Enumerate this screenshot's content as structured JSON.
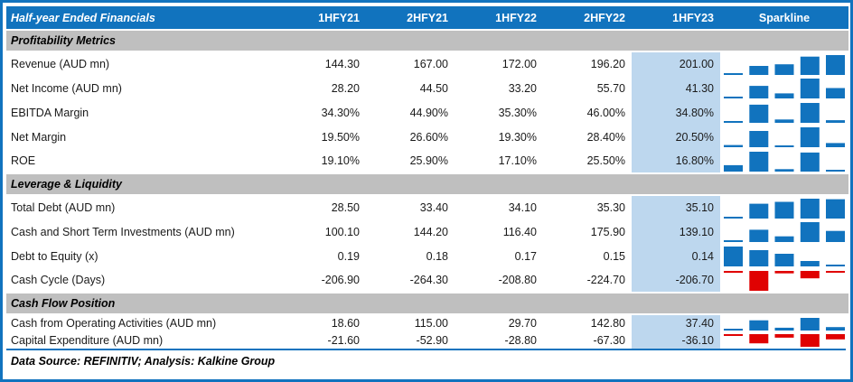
{
  "colors": {
    "accent_blue": "#1173BE",
    "section_gray": "#BFBFBF",
    "highlight_column": "#BDD7EE",
    "sparkline_positive": "#1173BE",
    "sparkline_negative": "#E00202"
  },
  "table": {
    "header": {
      "title": "Half-year Ended Financials",
      "columns": [
        "1HFY21",
        "2HFY21",
        "1HFY22",
        "2HFY22",
        "1HFY23"
      ],
      "sparkline_label": "Sparkline",
      "highlighted_column": "1HFY23"
    },
    "sections": [
      {
        "label": "Profitability Metrics",
        "rows": [
          {
            "label": "Revenue (AUD mn)",
            "values": [
              "144.30",
              "167.00",
              "172.00",
              "196.20",
              "201.00"
            ]
          },
          {
            "label": "Net Income (AUD mn)",
            "values": [
              "28.20",
              "44.50",
              "33.20",
              "55.70",
              "41.30"
            ]
          },
          {
            "label": "EBITDA Margin",
            "values": [
              "34.30%",
              "44.90%",
              "35.30%",
              "46.00%",
              "34.80%"
            ]
          },
          {
            "label": "Net Margin",
            "values": [
              "19.50%",
              "26.60%",
              "19.30%",
              "28.40%",
              "20.50%"
            ]
          },
          {
            "label": "ROE",
            "values": [
              "19.10%",
              "25.90%",
              "17.10%",
              "25.50%",
              "16.80%"
            ]
          }
        ]
      },
      {
        "label": "Leverage & Liquidity",
        "rows": [
          {
            "label": "Total Debt (AUD mn)",
            "values": [
              "28.50",
              "33.40",
              "34.10",
              "35.30",
              "35.10"
            ]
          },
          {
            "label": "Cash and Short Term Investments (AUD mn)",
            "values": [
              "100.10",
              "144.20",
              "116.40",
              "175.90",
              "139.10"
            ]
          },
          {
            "label": "Debt to Equity (x)",
            "values": [
              "0.19",
              "0.18",
              "0.17",
              "0.15",
              "0.14"
            ]
          },
          {
            "label": "Cash Cycle (Days)",
            "values": [
              "-206.90",
              "-264.30",
              "-208.80",
              "-224.70",
              "-206.70"
            ]
          }
        ]
      },
      {
        "label": "Cash Flow Position",
        "rows": [
          {
            "label": "Cash from Operating Activities (AUD mn)",
            "values": [
              "18.60",
              "115.00",
              "29.70",
              "142.80",
              "37.40"
            ]
          },
          {
            "label": "Capital Expenditure (AUD mn)",
            "values": [
              "-21.60",
              "-52.90",
              "-28.80",
              "-67.30",
              "-36.10"
            ]
          }
        ]
      }
    ]
  },
  "footer": {
    "note": "Data Source: REFINITIV; Analysis: Kalkine Group"
  },
  "chart_data": {
    "type": "table",
    "title": "Half-year Ended Financials",
    "columns": [
      "1HFY21",
      "2HFY21",
      "1HFY22",
      "2HFY22",
      "1HFY23"
    ],
    "highlighted_column": "1HFY23",
    "sparklines": {
      "type": "bar",
      "scaling": "per-row min-max, negative rows hang from top axis in red",
      "series": [
        {
          "name": "Revenue (AUD mn)",
          "values": [
            144.3,
            167.0,
            172.0,
            196.2,
            201.0
          ]
        },
        {
          "name": "Net Income (AUD mn)",
          "values": [
            28.2,
            44.5,
            33.2,
            55.7,
            41.3
          ]
        },
        {
          "name": "EBITDA Margin (%)",
          "values": [
            34.3,
            44.9,
            35.3,
            46.0,
            34.8
          ]
        },
        {
          "name": "Net Margin (%)",
          "values": [
            19.5,
            26.6,
            19.3,
            28.4,
            20.5
          ]
        },
        {
          "name": "ROE (%)",
          "values": [
            19.1,
            25.9,
            17.1,
            25.5,
            16.8
          ]
        },
        {
          "name": "Total Debt (AUD mn)",
          "values": [
            28.5,
            33.4,
            34.1,
            35.3,
            35.1
          ]
        },
        {
          "name": "Cash and Short Term Investments (AUD mn)",
          "values": [
            100.1,
            144.2,
            116.4,
            175.9,
            139.1
          ]
        },
        {
          "name": "Debt to Equity (x)",
          "values": [
            0.19,
            0.18,
            0.17,
            0.15,
            0.14
          ]
        },
        {
          "name": "Cash Cycle (Days)",
          "values": [
            -206.9,
            -264.3,
            -208.8,
            -224.7,
            -206.7
          ]
        },
        {
          "name": "Cash from Operating Activities (AUD mn)",
          "values": [
            18.6,
            115.0,
            29.7,
            142.8,
            37.4
          ]
        },
        {
          "name": "Capital Expenditure (AUD mn)",
          "values": [
            -21.6,
            -52.9,
            -28.8,
            -67.3,
            -36.1
          ]
        }
      ]
    }
  }
}
